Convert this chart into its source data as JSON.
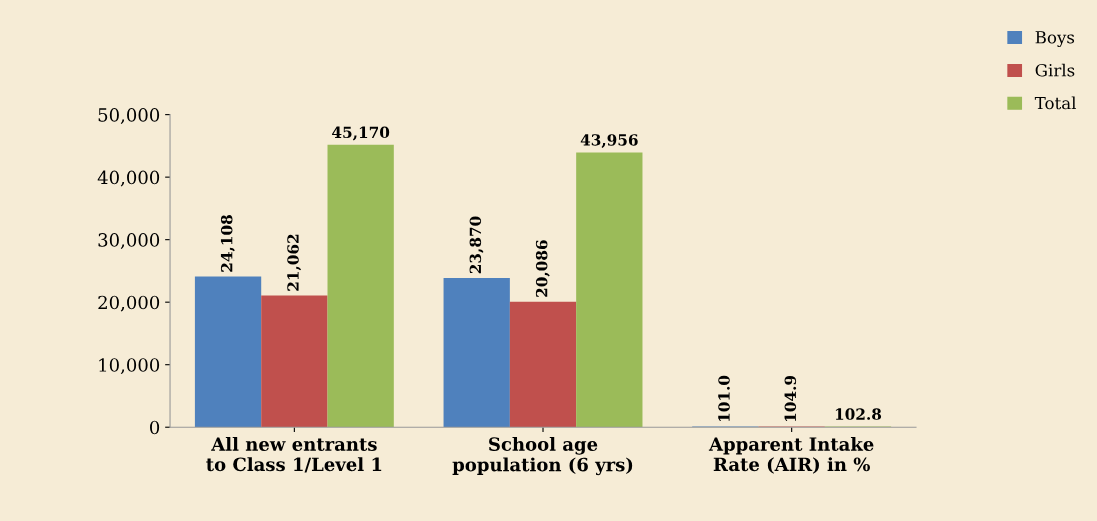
{
  "chart_data": {
    "type": "bar",
    "categories": [
      "All new entrants\nto Class 1/Level 1",
      "School age\npopulation (6 yrs)",
      "Apparent Intake\nRate (AIR) in %"
    ],
    "series": [
      {
        "name": "Boys",
        "color": "#4f81bd",
        "values": [
          24108,
          23870,
          101.0
        ],
        "value_labels": [
          "24,108",
          "23,870",
          "101.0"
        ]
      },
      {
        "name": "Girls",
        "color": "#c0504d",
        "values": [
          21062,
          20086,
          104.9
        ],
        "value_labels": [
          "21,062",
          "20,086",
          "104.9"
        ]
      },
      {
        "name": "Total",
        "color": "#9bbb59",
        "values": [
          45170,
          43956,
          102.8
        ],
        "value_labels": [
          "45,170",
          "43,956",
          "102.8"
        ]
      }
    ],
    "ylim": [
      0,
      50000
    ],
    "yticks": [
      0,
      {
        "value": 10000,
        "label": "10,000"
      },
      {
        "value": 20000,
        "label": "20,000"
      },
      {
        "value": 30000,
        "label": "30,000"
      },
      {
        "value": 40000,
        "label": "40,000"
      },
      {
        "value": 50000,
        "label": "50,000"
      }
    ],
    "legend": "top right",
    "grid": false
  }
}
